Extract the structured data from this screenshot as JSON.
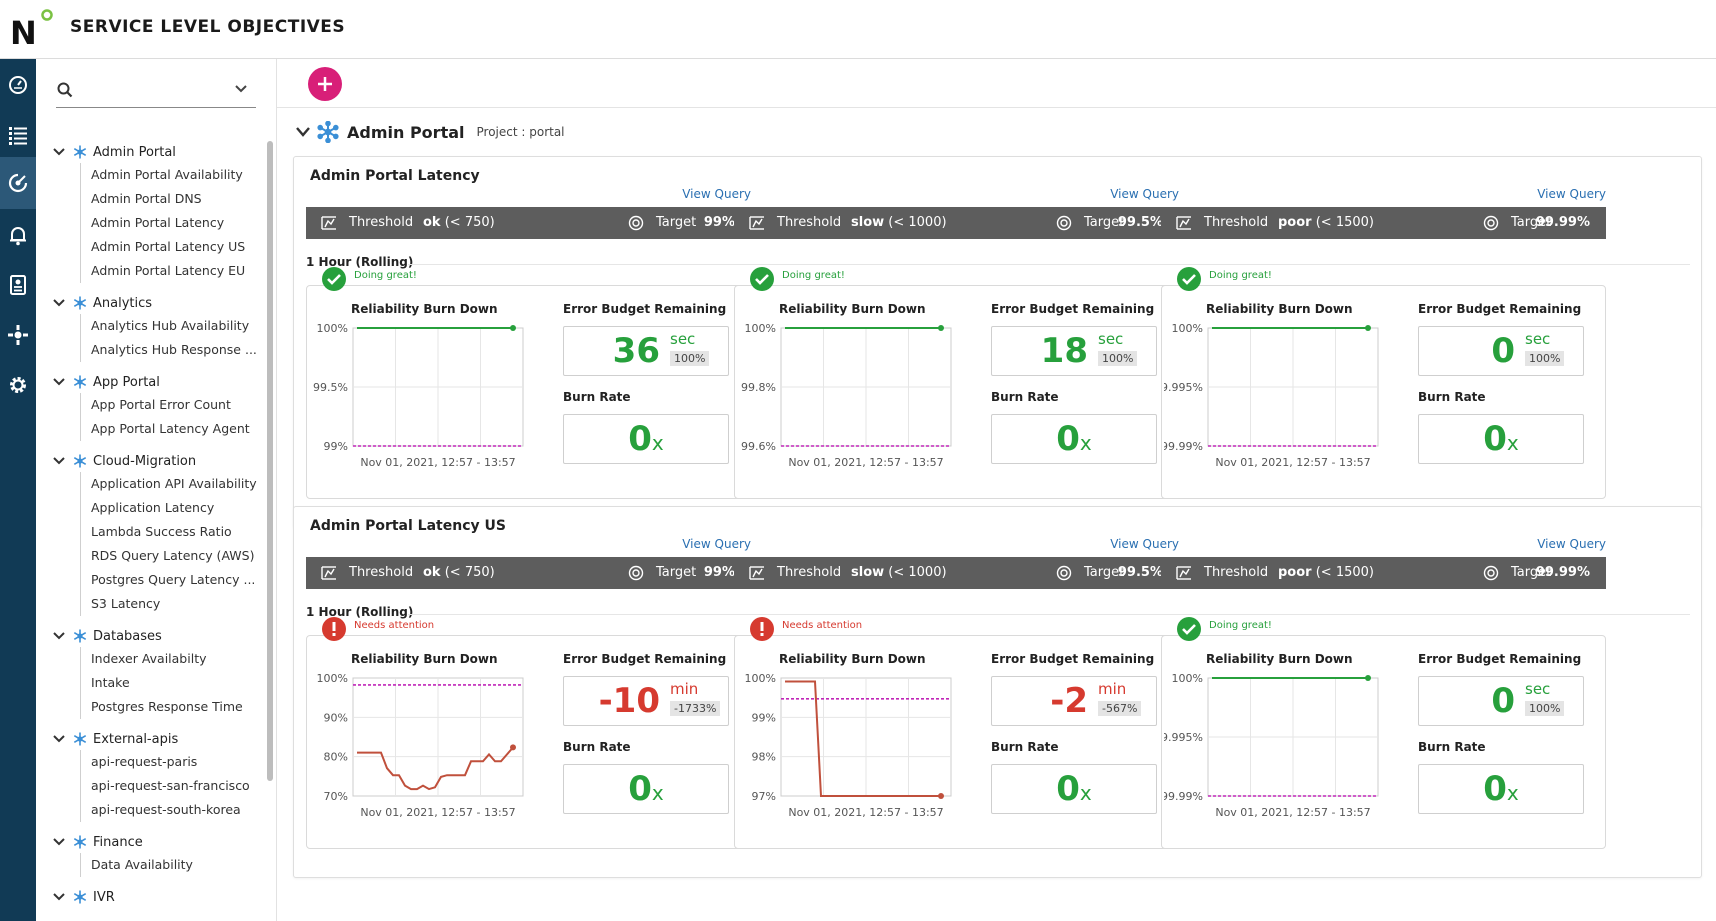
{
  "app": {
    "title": "SERVICE LEVEL OBJECTIVES",
    "logo_letter": "N"
  },
  "colors": {
    "rail": "#113a55",
    "accent": "#d81f78",
    "good": "#27a03c",
    "bad": "#d63a2f",
    "bar": "#5d5d5d",
    "link": "#2a6fb1",
    "target_line": "#c026b8",
    "bad_line": "#c0503c"
  },
  "rail": {
    "icons": [
      "dashboard-icon",
      "list-icon",
      "slo-icon",
      "alerts-icon",
      "reports-icon",
      "integrations-icon",
      "settings-icon"
    ],
    "active_index": 2
  },
  "sidebar": {
    "search": {
      "value": "",
      "placeholder": ""
    },
    "groups": [
      {
        "name": "Admin Portal",
        "items": [
          "Admin Portal Availability",
          "Admin Portal DNS",
          "Admin Portal Latency",
          "Admin Portal Latency US",
          "Admin Portal Latency EU"
        ]
      },
      {
        "name": "Analytics",
        "items": [
          "Analytics Hub Availability",
          "Analytics Hub Response ..."
        ]
      },
      {
        "name": "App Portal",
        "items": [
          "App Portal Error Count",
          "App Portal Latency Agent"
        ]
      },
      {
        "name": "Cloud-Migration",
        "items": [
          "Application API Availability",
          "Application Latency",
          "Lambda Success Ratio",
          "RDS Query Latency (AWS)",
          "Postgres Query Latency ...",
          "S3 Latency"
        ]
      },
      {
        "name": "Databases",
        "items": [
          "Indexer Availabilty",
          "Intake",
          "Postgres Response Time"
        ]
      },
      {
        "name": "External-apis",
        "items": [
          "api-request-paris",
          "api-request-san-francisco",
          "api-request-south-korea"
        ]
      },
      {
        "name": "Finance",
        "items": [
          "Data Availability"
        ]
      },
      {
        "name": "IVR",
        "items": []
      }
    ]
  },
  "project": {
    "name": "Admin Portal",
    "label": "Project : portal"
  },
  "slos": [
    {
      "title": "Admin Portal Latency",
      "rolling": "1 Hour (Rolling)",
      "objectives": [
        {
          "view_query": "View Query",
          "threshold_label": "Threshold",
          "threshold_name": "ok",
          "threshold_value": "(< 750)",
          "target_label": "Target",
          "target": "99%",
          "status": "Doing great!",
          "good": true,
          "rbd_label": "Reliability Burn Down",
          "ebr_label": "Error Budget Remaining",
          "eb_value": "36",
          "eb_unit": "sec",
          "eb_pct": "100%",
          "br_label": "Burn Rate",
          "burn_rate": "0",
          "burn_unit": "x",
          "y_ticks": [
            "100%",
            "99.5%",
            "99%"
          ],
          "x_label": "Nov 01, 2021, 12:57 - 13:57",
          "ylim": [
            99,
            100
          ],
          "target_line": 99,
          "series": [
            100,
            100,
            100,
            100,
            100,
            100,
            100,
            100,
            100,
            100
          ]
        },
        {
          "view_query": "View Query",
          "threshold_label": "Threshold",
          "threshold_name": "slow",
          "threshold_value": "(< 1000)",
          "target_label": "Target",
          "target": "99.5%",
          "status": "Doing great!",
          "good": true,
          "rbd_label": "Reliability Burn Down",
          "ebr_label": "Error Budget Remaining",
          "eb_value": "18",
          "eb_unit": "sec",
          "eb_pct": "100%",
          "br_label": "Burn Rate",
          "burn_rate": "0",
          "burn_unit": "x",
          "y_ticks": [
            "100%",
            "99.8%",
            "99.6%"
          ],
          "x_label": "Nov 01, 2021, 12:57 - 13:57",
          "ylim": [
            99.5,
            100
          ],
          "target_line": 99.5,
          "series": [
            100,
            100,
            100,
            100,
            100,
            100,
            100,
            100,
            100,
            100
          ]
        },
        {
          "view_query": "View Query",
          "threshold_label": "Threshold",
          "threshold_name": "poor",
          "threshold_value": "(< 1500)",
          "target_label": "Target",
          "target": "99.99%",
          "status": "Doing great!",
          "good": true,
          "rbd_label": "Reliability Burn Down",
          "ebr_label": "Error Budget Remaining",
          "eb_value": "0",
          "eb_unit": "sec",
          "eb_pct": "100%",
          "br_label": "Burn Rate",
          "burn_rate": "0",
          "burn_unit": "x",
          "y_ticks": [
            "100%",
            "99.995%",
            "99.99%"
          ],
          "x_label": "Nov 01, 2021, 12:57 - 13:57",
          "ylim": [
            99.99,
            100
          ],
          "target_line": 99.99,
          "series": [
            100,
            100,
            100,
            100,
            100,
            100,
            100,
            100,
            100,
            100
          ]
        }
      ]
    },
    {
      "title": "Admin Portal Latency US",
      "rolling": "1 Hour (Rolling)",
      "objectives": [
        {
          "view_query": "View Query",
          "threshold_label": "Threshold",
          "threshold_name": "ok",
          "threshold_value": "(< 750)",
          "target_label": "Target",
          "target": "99%",
          "status": "Needs attention",
          "good": false,
          "rbd_label": "Reliability Burn Down",
          "ebr_label": "Error Budget Remaining",
          "eb_value": "-10",
          "eb_unit": "min",
          "eb_pct": "-1733%",
          "br_label": "Burn Rate",
          "burn_rate": "0",
          "burn_unit": "x",
          "y_ticks": [
            "100%",
            "90%",
            "80%",
            "70%"
          ],
          "x_label": "Nov 01, 2021, 12:57 - 13:57",
          "ylim": [
            67,
            101
          ],
          "target_line": 99,
          "series": [
            79.5,
            79.5,
            79.5,
            79.5,
            79.5,
            75,
            73,
            73,
            70,
            69,
            69,
            70,
            69,
            69.5,
            72.5,
            73,
            73,
            73,
            73,
            77,
            77,
            77,
            79,
            77,
            77,
            79,
            81
          ]
        },
        {
          "view_query": "View Query",
          "threshold_label": "Threshold",
          "threshold_name": "slow",
          "threshold_value": "(< 1000)",
          "target_label": "Target",
          "target": "99.5%",
          "status": "Needs attention",
          "good": false,
          "rbd_label": "Reliability Burn Down",
          "ebr_label": "Error Budget Remaining",
          "eb_value": "-2",
          "eb_unit": "min",
          "eb_pct": "-567%",
          "br_label": "Burn Rate",
          "burn_rate": "0",
          "burn_unit": "x",
          "y_ticks": [
            "100%",
            "99%",
            "98%",
            "97%"
          ],
          "x_label": "Nov 01, 2021, 12:57 - 13:57",
          "ylim": [
            96.7,
            100.1
          ],
          "target_line": 99.5,
          "series": [
            100,
            100,
            100,
            100,
            100,
            100,
            96.7,
            96.7,
            96.7,
            96.7,
            96.7,
            96.7,
            96.7,
            96.7,
            96.7,
            96.7,
            96.7,
            96.7,
            96.7,
            96.7,
            96.7,
            96.7,
            96.7,
            96.7,
            96.7,
            96.7,
            96.7
          ]
        },
        {
          "view_query": "View Query",
          "threshold_label": "Threshold",
          "threshold_name": "poor",
          "threshold_value": "(< 1500)",
          "target_label": "Target",
          "target": "99.99%",
          "status": "Doing great!",
          "good": true,
          "rbd_label": "Reliability Burn Down",
          "ebr_label": "Error Budget Remaining",
          "eb_value": "0",
          "eb_unit": "sec",
          "eb_pct": "100%",
          "br_label": "Burn Rate",
          "burn_rate": "0",
          "burn_unit": "x",
          "y_ticks": [
            "100%",
            "99.995%",
            "99.99%"
          ],
          "x_label": "Nov 01, 2021, 12:57 - 13:57",
          "ylim": [
            99.99,
            100
          ],
          "target_line": 99.99,
          "series": [
            100,
            100,
            100,
            100,
            100,
            100,
            100,
            100,
            100,
            100
          ]
        }
      ]
    }
  ],
  "chart_data": [
    {
      "type": "line",
      "title": "Reliability Burn Down",
      "slo": "Admin Portal Latency",
      "threshold": "ok",
      "ylim": [
        99,
        100
      ],
      "y_ticks": [
        "100%",
        "99.5%",
        "99%"
      ],
      "xlabel": "Nov 01, 2021, 12:57 - 13:57",
      "target": 99,
      "values": [
        100,
        100,
        100,
        100,
        100,
        100,
        100,
        100,
        100,
        100
      ]
    },
    {
      "type": "line",
      "title": "Reliability Burn Down",
      "slo": "Admin Portal Latency",
      "threshold": "slow",
      "ylim": [
        99.5,
        100
      ],
      "y_ticks": [
        "100%",
        "99.8%",
        "99.6%"
      ],
      "xlabel": "Nov 01, 2021, 12:57 - 13:57",
      "target": 99.5,
      "values": [
        100,
        100,
        100,
        100,
        100,
        100,
        100,
        100,
        100,
        100
      ]
    },
    {
      "type": "line",
      "title": "Reliability Burn Down",
      "slo": "Admin Portal Latency",
      "threshold": "poor",
      "ylim": [
        99.99,
        100
      ],
      "y_ticks": [
        "100%",
        "99.995%",
        "99.99%"
      ],
      "xlabel": "Nov 01, 2021, 12:57 - 13:57",
      "target": 99.99,
      "values": [
        100,
        100,
        100,
        100,
        100,
        100,
        100,
        100,
        100,
        100
      ]
    },
    {
      "type": "line",
      "title": "Reliability Burn Down",
      "slo": "Admin Portal Latency US",
      "threshold": "ok",
      "ylim": [
        67,
        101
      ],
      "y_ticks": [
        "100%",
        "90%",
        "80%",
        "70%"
      ],
      "xlabel": "Nov 01, 2021, 12:57 - 13:57",
      "target": 99,
      "values": [
        79.5,
        79.5,
        79.5,
        79.5,
        79.5,
        75,
        73,
        73,
        70,
        69,
        69,
        70,
        69,
        69.5,
        72.5,
        73,
        73,
        73,
        73,
        77,
        77,
        77,
        79,
        77,
        77,
        79,
        81
      ]
    },
    {
      "type": "line",
      "title": "Reliability Burn Down",
      "slo": "Admin Portal Latency US",
      "threshold": "slow",
      "ylim": [
        96.7,
        100.1
      ],
      "y_ticks": [
        "100%",
        "99%",
        "98%",
        "97%"
      ],
      "xlabel": "Nov 01, 2021, 12:57 - 13:57",
      "target": 99.5,
      "values": [
        100,
        100,
        100,
        100,
        100,
        100,
        96.7,
        96.7,
        96.7,
        96.7,
        96.7,
        96.7,
        96.7,
        96.7,
        96.7,
        96.7,
        96.7,
        96.7,
        96.7,
        96.7,
        96.7,
        96.7,
        96.7,
        96.7,
        96.7,
        96.7,
        96.7
      ]
    },
    {
      "type": "line",
      "title": "Reliability Burn Down",
      "slo": "Admin Portal Latency US",
      "threshold": "poor",
      "ylim": [
        99.99,
        100
      ],
      "y_ticks": [
        "100%",
        "99.995%",
        "99.99%"
      ],
      "xlabel": "Nov 01, 2021, 12:57 - 13:57",
      "target": 99.99,
      "values": [
        100,
        100,
        100,
        100,
        100,
        100,
        100,
        100,
        100,
        100
      ]
    }
  ]
}
